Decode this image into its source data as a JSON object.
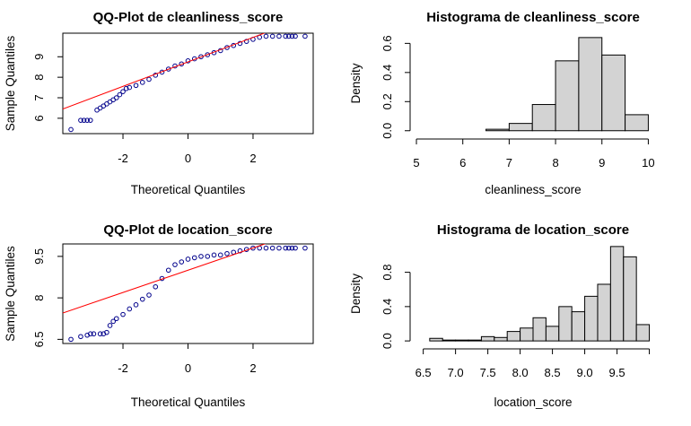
{
  "chart_data": [
    {
      "id": "qq1",
      "type": "scatter",
      "title": "QQ-Plot de cleanliness_score",
      "xlabel": "Theoretical Quantiles",
      "ylabel": "Sample Quantiles",
      "xlim": [
        -3.85,
        3.85
      ],
      "ylim": [
        5.25,
        10.15
      ],
      "xticks": [
        -2,
        0,
        2
      ],
      "yticks": [
        6,
        7,
        8,
        9
      ],
      "point_color": "#00008B",
      "line_color": "#FF0000",
      "ref_line": {
        "x1": -3.85,
        "y1": 6.45,
        "x2": 3.85,
        "y2": 11.05
      },
      "points": [
        [
          -3.6,
          5.45
        ],
        [
          -3.3,
          5.9
        ],
        [
          -3.2,
          5.9
        ],
        [
          -3.1,
          5.9
        ],
        [
          -3.0,
          5.9
        ],
        [
          -2.8,
          6.4
        ],
        [
          -2.7,
          6.5
        ],
        [
          -2.6,
          6.6
        ],
        [
          -2.5,
          6.7
        ],
        [
          -2.4,
          6.8
        ],
        [
          -2.3,
          6.9
        ],
        [
          -2.2,
          7.0
        ],
        [
          -2.1,
          7.15
        ],
        [
          -2.0,
          7.3
        ],
        [
          -1.9,
          7.45
        ],
        [
          -1.8,
          7.5
        ],
        [
          -1.6,
          7.6
        ],
        [
          -1.4,
          7.75
        ],
        [
          -1.2,
          7.9
        ],
        [
          -1.0,
          8.1
        ],
        [
          -0.8,
          8.25
        ],
        [
          -0.6,
          8.4
        ],
        [
          -0.4,
          8.55
        ],
        [
          -0.2,
          8.65
        ],
        [
          0.0,
          8.8
        ],
        [
          0.2,
          8.9
        ],
        [
          0.4,
          9.0
        ],
        [
          0.6,
          9.1
        ],
        [
          0.8,
          9.2
        ],
        [
          1.0,
          9.3
        ],
        [
          1.2,
          9.45
        ],
        [
          1.4,
          9.55
        ],
        [
          1.6,
          9.65
        ],
        [
          1.8,
          9.75
        ],
        [
          2.0,
          9.85
        ],
        [
          2.2,
          9.95
        ],
        [
          2.4,
          10.0
        ],
        [
          2.6,
          10.0
        ],
        [
          2.8,
          10.0
        ],
        [
          3.0,
          10.0
        ],
        [
          3.1,
          10.0
        ],
        [
          3.2,
          10.0
        ],
        [
          3.3,
          10.0
        ],
        [
          3.6,
          10.0
        ]
      ]
    },
    {
      "id": "hist1",
      "type": "bar",
      "title": "Histograma de cleanliness_score",
      "xlabel": "cleanliness_score",
      "ylabel": "Density",
      "xlim": [
        4.98,
        10.05
      ],
      "ylim": [
        -0.02,
        0.67
      ],
      "xticks": [
        5,
        6,
        7,
        8,
        9,
        10
      ],
      "yticks": [
        0.0,
        0.2,
        0.4,
        0.6
      ],
      "fill": "#D3D3D3",
      "bin_edges": [
        5.0,
        5.5,
        6.0,
        6.5,
        7.0,
        7.5,
        8.0,
        8.5,
        9.0,
        9.5,
        10.0
      ],
      "values": [
        0.0,
        0.0,
        0.0,
        0.01,
        0.05,
        0.18,
        0.48,
        0.64,
        0.52,
        0.11
      ]
    },
    {
      "id": "qq2",
      "type": "scatter",
      "title": "QQ-Plot de location_score",
      "xlabel": "Theoretical Quantiles",
      "ylabel": "Sample Quantiles",
      "xlim": [
        -3.85,
        3.85
      ],
      "ylim": [
        6.35,
        9.95
      ],
      "xticks": [
        -2,
        0,
        2
      ],
      "yticks": [
        6.5,
        8.0,
        9.5
      ],
      "point_color": "#00008B",
      "line_color": "#FF0000",
      "ref_line": {
        "x1": -3.85,
        "y1": 7.45,
        "x2": 3.85,
        "y2": 10.55
      },
      "points": [
        [
          -3.6,
          6.5
        ],
        [
          -3.3,
          6.6
        ],
        [
          -3.1,
          6.65
        ],
        [
          -3.0,
          6.7
        ],
        [
          -2.9,
          6.7
        ],
        [
          -2.7,
          6.7
        ],
        [
          -2.6,
          6.7
        ],
        [
          -2.5,
          6.75
        ],
        [
          -2.4,
          7.0
        ],
        [
          -2.3,
          7.15
        ],
        [
          -2.2,
          7.25
        ],
        [
          -2.0,
          7.4
        ],
        [
          -1.8,
          7.6
        ],
        [
          -1.6,
          7.75
        ],
        [
          -1.4,
          7.95
        ],
        [
          -1.2,
          8.1
        ],
        [
          -1.0,
          8.4
        ],
        [
          -0.8,
          8.7
        ],
        [
          -0.6,
          9.0
        ],
        [
          -0.4,
          9.2
        ],
        [
          -0.2,
          9.3
        ],
        [
          0.0,
          9.4
        ],
        [
          0.2,
          9.45
        ],
        [
          0.4,
          9.5
        ],
        [
          0.6,
          9.5
        ],
        [
          0.8,
          9.55
        ],
        [
          1.0,
          9.55
        ],
        [
          1.2,
          9.6
        ],
        [
          1.4,
          9.65
        ],
        [
          1.6,
          9.7
        ],
        [
          1.8,
          9.75
        ],
        [
          2.0,
          9.8
        ],
        [
          2.2,
          9.8
        ],
        [
          2.4,
          9.8
        ],
        [
          2.6,
          9.8
        ],
        [
          2.8,
          9.8
        ],
        [
          3.0,
          9.8
        ],
        [
          3.1,
          9.8
        ],
        [
          3.2,
          9.8
        ],
        [
          3.3,
          9.8
        ],
        [
          3.6,
          9.8
        ]
      ]
    },
    {
      "id": "hist2",
      "type": "bar",
      "title": "Histograma de location_score",
      "xlabel": "location_score",
      "ylabel": "Density",
      "xlim": [
        6.38,
        10.02
      ],
      "ylim": [
        -0.03,
        1.13
      ],
      "xticks": [
        6.5,
        7.0,
        7.5,
        8.0,
        8.5,
        9.0,
        9.5
      ],
      "xtick_labels": [
        "6.5",
        "7.0",
        "7.5",
        "8.0",
        "8.5",
        "9.0",
        "9.5"
      ],
      "axis_extends_to": 10.0,
      "yticks": [
        0.0,
        0.4,
        0.8
      ],
      "fill": "#D3D3D3",
      "bin_edges": [
        6.6,
        6.8,
        7.0,
        7.2,
        7.4,
        7.6,
        7.8,
        8.0,
        8.2,
        8.4,
        8.6,
        8.8,
        9.0,
        9.2,
        9.4,
        9.6,
        9.8,
        10.0
      ],
      "values": [
        0.03,
        0.01,
        0.01,
        0.01,
        0.05,
        0.04,
        0.11,
        0.15,
        0.27,
        0.17,
        0.4,
        0.34,
        0.52,
        0.66,
        1.1,
        0.98,
        0.19
      ]
    }
  ]
}
